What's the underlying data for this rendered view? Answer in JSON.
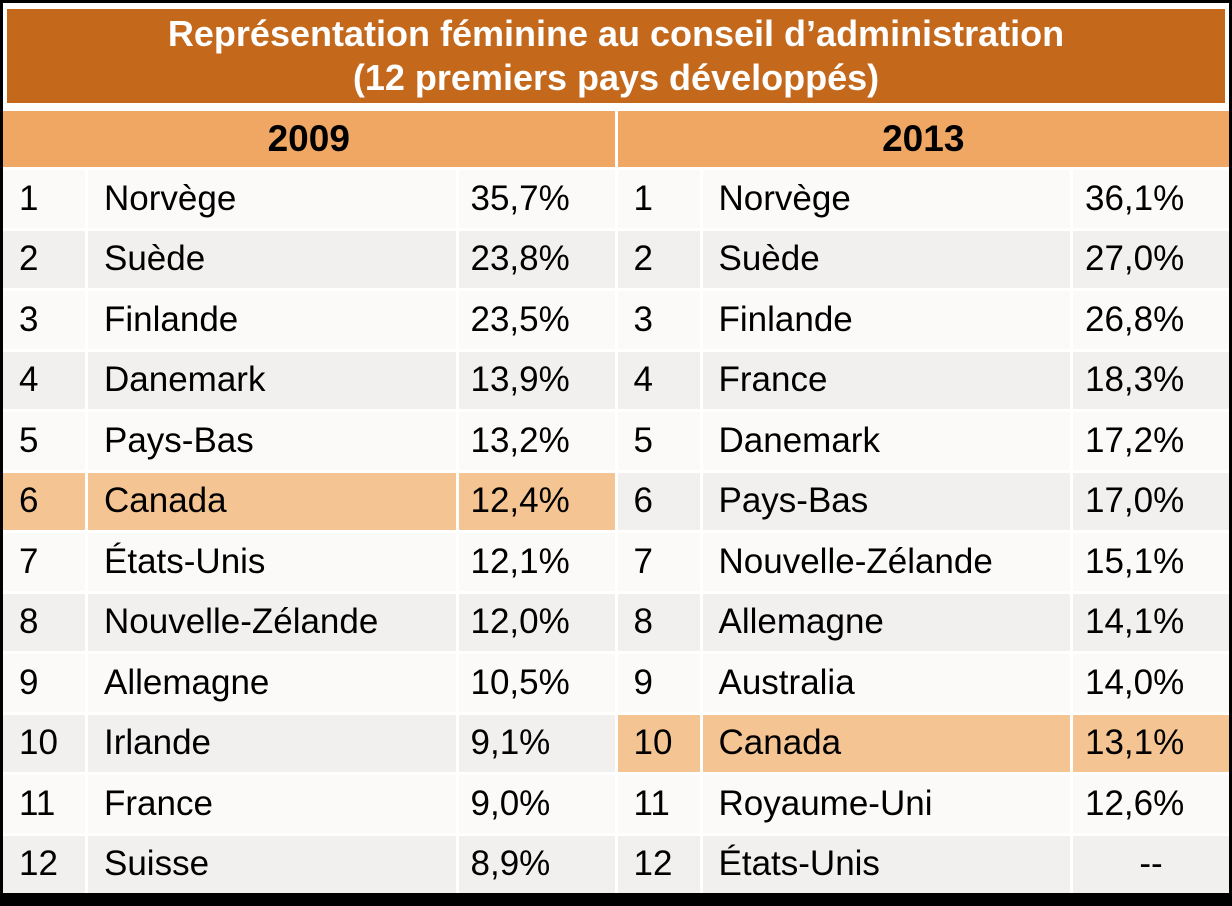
{
  "chart_data": {
    "type": "table",
    "title": "Représentation féminine au conseil d’administration",
    "subtitle": "(12 premiers pays développés)",
    "highlighted_country": "Canada",
    "tables": [
      {
        "year": "2009",
        "rows": [
          {
            "rank": "1",
            "country": "Norvège",
            "value": "35,7%",
            "highlight": false
          },
          {
            "rank": "2",
            "country": "Suède",
            "value": "23,8%",
            "highlight": false
          },
          {
            "rank": "3",
            "country": "Finlande",
            "value": "23,5%",
            "highlight": false
          },
          {
            "rank": "4",
            "country": "Danemark",
            "value": "13,9%",
            "highlight": false
          },
          {
            "rank": "5",
            "country": "Pays-Bas",
            "value": "13,2%",
            "highlight": false
          },
          {
            "rank": "6",
            "country": "Canada",
            "value": "12,4%",
            "highlight": true
          },
          {
            "rank": "7",
            "country": "États-Unis",
            "value": "12,1%",
            "highlight": false
          },
          {
            "rank": "8",
            "country": "Nouvelle-Zélande",
            "value": "12,0%",
            "highlight": false
          },
          {
            "rank": "9",
            "country": "Allemagne",
            "value": "10,5%",
            "highlight": false
          },
          {
            "rank": "10",
            "country": "Irlande",
            "value": "9,1%",
            "highlight": false
          },
          {
            "rank": "11",
            "country": "France",
            "value": "9,0%",
            "highlight": false
          },
          {
            "rank": "12",
            "country": "Suisse",
            "value": "8,9%",
            "highlight": false
          }
        ]
      },
      {
        "year": "2013",
        "rows": [
          {
            "rank": "1",
            "country": "Norvège",
            "value": "36,1%",
            "highlight": false
          },
          {
            "rank": "2",
            "country": "Suède",
            "value": "27,0%",
            "highlight": false
          },
          {
            "rank": "3",
            "country": "Finlande",
            "value": "26,8%",
            "highlight": false
          },
          {
            "rank": "4",
            "country": "France",
            "value": "18,3%",
            "highlight": false
          },
          {
            "rank": "5",
            "country": "Danemark",
            "value": "17,2%",
            "highlight": false
          },
          {
            "rank": "6",
            "country": "Pays-Bas",
            "value": "17,0%",
            "highlight": false
          },
          {
            "rank": "7",
            "country": "Nouvelle-Zélande",
            "value": "15,1%",
            "highlight": false
          },
          {
            "rank": "8",
            "country": "Allemagne",
            "value": "14,1%",
            "highlight": false
          },
          {
            "rank": "9",
            "country": "Australia",
            "value": "14,0%",
            "highlight": false
          },
          {
            "rank": "10",
            "country": "Canada",
            "value": "13,1%",
            "highlight": true
          },
          {
            "rank": "11",
            "country": "Royaume-Uni",
            "value": "12,6%",
            "highlight": false
          },
          {
            "rank": "12",
            "country": "États-Unis",
            "value": "--",
            "highlight": false
          }
        ]
      }
    ]
  },
  "colors": {
    "header_bg": "#C4681C",
    "header_text": "#FFFFFF",
    "year_bg": "#EFA763",
    "row_odd": "#FBFAF9",
    "row_even": "#F1F0EF",
    "highlight": "#F5C493",
    "text": "#000000",
    "frame": "#000000",
    "divider": "#FFFFFF"
  }
}
